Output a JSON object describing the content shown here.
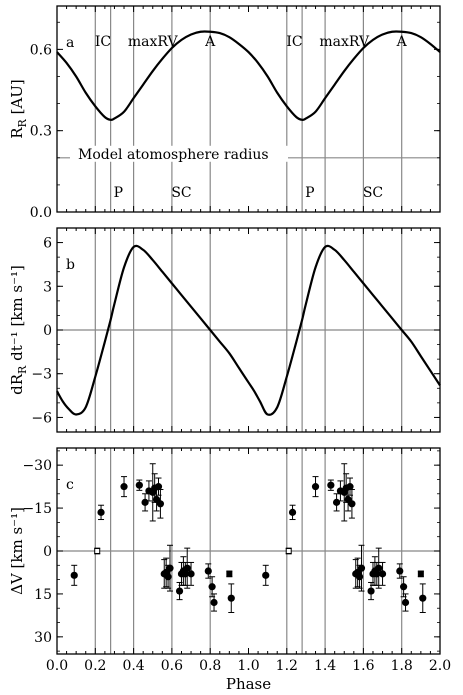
{
  "chart_data": [
    {
      "type": "line",
      "panel_label": "a",
      "ylabel": "R_R [AU]",
      "ylabel_main": "R",
      "ylabel_sub": "R",
      "ylabel_unit": " [AU]",
      "xlim": [
        0.0,
        2.0
      ],
      "ylim": [
        0.0,
        0.76
      ],
      "yticks": [
        0.0,
        0.3,
        0.6
      ],
      "ytick_labels": [
        "0.0",
        "0.3",
        "0.6"
      ],
      "hline": {
        "y": 0.2,
        "label": "Model atomosphere radius"
      },
      "vlines": [
        0.2,
        0.28,
        0.4,
        0.6,
        0.8,
        1.2,
        1.28,
        1.4,
        1.6,
        1.8
      ],
      "annotations_top": [
        {
          "x": 0.24,
          "text": "IC"
        },
        {
          "x": 0.5,
          "text": "maxRV"
        },
        {
          "x": 0.8,
          "text": "A"
        },
        {
          "x": 1.24,
          "text": "IC"
        },
        {
          "x": 1.5,
          "text": "maxRV"
        },
        {
          "x": 1.8,
          "text": "A"
        }
      ],
      "annotations_bottom": [
        {
          "x": 0.32,
          "text": "P"
        },
        {
          "x": 0.65,
          "text": "SC"
        },
        {
          "x": 1.32,
          "text": "P"
        },
        {
          "x": 1.65,
          "text": "SC"
        }
      ],
      "series": [
        {
          "x": [
            0.0,
            0.05,
            0.1,
            0.15,
            0.2,
            0.25,
            0.28,
            0.3,
            0.35,
            0.4,
            0.45,
            0.5,
            0.55,
            0.6,
            0.65,
            0.7,
            0.75,
            0.8,
            0.85,
            0.9,
            0.95,
            1.0,
            1.05,
            1.1,
            1.15,
            1.2,
            1.25,
            1.28,
            1.3,
            1.35,
            1.4,
            1.45,
            1.5,
            1.55,
            1.6,
            1.65,
            1.7,
            1.75,
            1.8,
            1.85,
            1.9,
            1.95,
            2.0
          ],
          "y": [
            0.59,
            0.55,
            0.5,
            0.44,
            0.39,
            0.35,
            0.34,
            0.345,
            0.37,
            0.42,
            0.47,
            0.52,
            0.565,
            0.605,
            0.635,
            0.655,
            0.665,
            0.665,
            0.66,
            0.645,
            0.62,
            0.59,
            0.55,
            0.5,
            0.44,
            0.39,
            0.35,
            0.34,
            0.345,
            0.37,
            0.42,
            0.47,
            0.52,
            0.565,
            0.605,
            0.635,
            0.655,
            0.665,
            0.665,
            0.66,
            0.645,
            0.62,
            0.59
          ]
        }
      ]
    },
    {
      "type": "line",
      "panel_label": "b",
      "ylabel": "dR_R dt^-1 [km s^-1]",
      "ylabel_main": "dR",
      "ylabel_sub": "R",
      "ylabel_unit": " dt⁻¹ [km s⁻¹]",
      "xlim": [
        0.0,
        2.0
      ],
      "ylim": [
        -7.0,
        7.0
      ],
      "yticks": [
        -6,
        -3,
        0,
        3,
        6
      ],
      "ytick_labels": [
        "−6",
        "−3",
        "0",
        "3",
        "6"
      ],
      "hline": {
        "y": 0
      },
      "vlines": [
        0.2,
        0.28,
        0.4,
        0.6,
        0.8,
        1.2,
        1.28,
        1.4,
        1.6,
        1.8
      ],
      "series": [
        {
          "x": [
            0.0,
            0.03,
            0.06,
            0.1,
            0.15,
            0.2,
            0.25,
            0.28,
            0.3,
            0.35,
            0.4,
            0.45,
            0.5,
            0.55,
            0.6,
            0.65,
            0.7,
            0.75,
            0.8,
            0.85,
            0.9,
            0.95,
            1.0,
            1.03,
            1.06,
            1.1,
            1.15,
            1.2,
            1.25,
            1.28,
            1.3,
            1.35,
            1.4,
            1.45,
            1.5,
            1.55,
            1.6,
            1.65,
            1.7,
            1.75,
            1.8,
            1.85,
            1.9,
            1.95,
            2.0
          ],
          "y": [
            -4.2,
            -4.9,
            -5.4,
            -5.8,
            -5.3,
            -3.2,
            -0.8,
            0.7,
            1.8,
            4.3,
            5.7,
            5.5,
            4.8,
            4.0,
            3.2,
            2.4,
            1.6,
            0.8,
            0.0,
            -0.8,
            -1.6,
            -2.6,
            -3.6,
            -4.2,
            -4.9,
            -5.8,
            -5.3,
            -3.2,
            -0.8,
            0.7,
            1.8,
            4.3,
            5.7,
            5.5,
            4.8,
            4.0,
            3.2,
            2.4,
            1.6,
            0.8,
            0.0,
            -0.8,
            -1.8,
            -2.8,
            -3.8
          ]
        }
      ]
    },
    {
      "type": "scatter",
      "panel_label": "c",
      "ylabel": "ΔV [km s^-1]",
      "ylabel_main": "ΔV",
      "ylabel_sub": "",
      "ylabel_unit": " [km s⁻¹]",
      "xlabel": "Phase",
      "xlim": [
        0.0,
        2.0
      ],
      "ylim": [
        36.0,
        -36.0
      ],
      "inverted_y": true,
      "yticks": [
        -30,
        -15,
        0,
        15,
        30
      ],
      "ytick_labels": [
        "−30",
        "−15",
        "0",
        "15",
        "30"
      ],
      "xticks": [
        0.0,
        0.2,
        0.4,
        0.6,
        0.8,
        1.0,
        1.2,
        1.4,
        1.6,
        1.8,
        2.0
      ],
      "xtick_labels": [
        "0.0",
        "0.2",
        "0.4",
        "0.6",
        "0.8",
        "1.0",
        "1.2",
        "1.4",
        "1.6",
        "1.8",
        "2.0"
      ],
      "hline": {
        "y": 0
      },
      "vlines": [
        0.2,
        0.28,
        0.4,
        0.6,
        0.8,
        1.2,
        1.28,
        1.4,
        1.6,
        1.8
      ],
      "series": [
        {
          "points": [
            {
              "x": 0.09,
              "y": 8.5,
              "err": 3.5
            },
            {
              "x": 0.21,
              "y": 0.0,
              "err": 1.0,
              "open": true
            },
            {
              "x": 0.23,
              "y": -13.5,
              "err": 2.5
            },
            {
              "x": 0.35,
              "y": -22.5,
              "err": 3.5
            },
            {
              "x": 0.43,
              "y": -23.0,
              "err": 1.8
            },
            {
              "x": 0.46,
              "y": -17.0,
              "err": 3.0
            },
            {
              "x": 0.48,
              "y": -21.0,
              "err": 3.5
            },
            {
              "x": 0.5,
              "y": -20.5,
              "err": 10.0
            },
            {
              "x": 0.51,
              "y": -22.0,
              "err": 5.0
            },
            {
              "x": 0.52,
              "y": -18.0,
              "err": 4.0
            },
            {
              "x": 0.53,
              "y": -22.5,
              "err": 3.0
            },
            {
              "x": 0.54,
              "y": -16.5,
              "err": 5.0
            },
            {
              "x": 0.56,
              "y": 8.0,
              "err": 5.0
            },
            {
              "x": 0.57,
              "y": 7.5,
              "err": 5.0
            },
            {
              "x": 0.58,
              "y": 9.0,
              "err": 4.0
            },
            {
              "x": 0.59,
              "y": 6.0,
              "err": 8.0
            },
            {
              "x": 0.64,
              "y": 14.0,
              "err": 3.0
            },
            {
              "x": 0.65,
              "y": 8.0,
              "err": 4.0
            },
            {
              "x": 0.66,
              "y": 7.0,
              "err": 5.0
            },
            {
              "x": 0.67,
              "y": 8.0,
              "err": 4.0
            },
            {
              "x": 0.68,
              "y": 6.0,
              "err": 7.0
            },
            {
              "x": 0.7,
              "y": 8.0,
              "err": 4.0
            },
            {
              "x": 0.79,
              "y": 7.0,
              "err": 2.5
            },
            {
              "x": 0.81,
              "y": 12.5,
              "err": 3.5
            },
            {
              "x": 0.82,
              "y": 18.0,
              "err": 3.0
            },
            {
              "x": 0.9,
              "y": 8.0,
              "err": 1.0,
              "square": true
            },
            {
              "x": 0.91,
              "y": 16.5,
              "err": 5.0
            },
            {
              "x": 1.09,
              "y": 8.5,
              "err": 3.5
            },
            {
              "x": 1.21,
              "y": 0.0,
              "err": 1.0,
              "open": true
            },
            {
              "x": 1.23,
              "y": -13.5,
              "err": 2.5
            },
            {
              "x": 1.35,
              "y": -22.5,
              "err": 3.5
            },
            {
              "x": 1.43,
              "y": -23.0,
              "err": 1.8
            },
            {
              "x": 1.46,
              "y": -17.0,
              "err": 3.0
            },
            {
              "x": 1.48,
              "y": -21.0,
              "err": 3.5
            },
            {
              "x": 1.5,
              "y": -20.5,
              "err": 10.0
            },
            {
              "x": 1.51,
              "y": -22.0,
              "err": 5.0
            },
            {
              "x": 1.52,
              "y": -18.0,
              "err": 4.0
            },
            {
              "x": 1.53,
              "y": -22.5,
              "err": 3.0
            },
            {
              "x": 1.54,
              "y": -16.5,
              "err": 5.0
            },
            {
              "x": 1.56,
              "y": 8.0,
              "err": 5.0
            },
            {
              "x": 1.57,
              "y": 7.5,
              "err": 5.0
            },
            {
              "x": 1.58,
              "y": 9.0,
              "err": 4.0
            },
            {
              "x": 1.59,
              "y": 6.0,
              "err": 8.0
            },
            {
              "x": 1.64,
              "y": 14.0,
              "err": 3.0
            },
            {
              "x": 1.65,
              "y": 8.0,
              "err": 4.0
            },
            {
              "x": 1.66,
              "y": 7.0,
              "err": 5.0
            },
            {
              "x": 1.67,
              "y": 8.0,
              "err": 4.0
            },
            {
              "x": 1.68,
              "y": 6.0,
              "err": 7.0
            },
            {
              "x": 1.7,
              "y": 8.0,
              "err": 4.0
            },
            {
              "x": 1.79,
              "y": 7.0,
              "err": 2.5
            },
            {
              "x": 1.81,
              "y": 12.5,
              "err": 3.5
            },
            {
              "x": 1.82,
              "y": 18.0,
              "err": 3.0
            },
            {
              "x": 1.9,
              "y": 8.0,
              "err": 1.0,
              "square": true
            },
            {
              "x": 1.91,
              "y": 16.5,
              "err": 5.0
            }
          ]
        }
      ]
    }
  ],
  "colors": {
    "curve": "#000000",
    "reference_line": "#888888",
    "frame": "#000000"
  }
}
